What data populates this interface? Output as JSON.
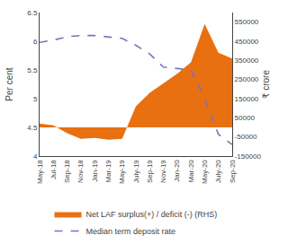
{
  "chart_data": {
    "type": "line",
    "categories": [
      "May-18",
      "Jul-18",
      "Sep-18",
      "Nov-18",
      "Jan-19",
      "Mar-19",
      "May-19",
      "July-19",
      "Sep-19",
      "Nov-19",
      "Jan-20",
      "Mar-20",
      "May-20",
      "July-20",
      "Sep-20"
    ],
    "series": [
      {
        "name": "Net LAF surplus(+) / deficit (-) (RHS)",
        "type": "area",
        "color": "#E87010",
        "axis": "y2",
        "values": [
          20000,
          10000,
          -30000,
          -60000,
          -55000,
          -65000,
          -60000,
          110000,
          180000,
          230000,
          280000,
          340000,
          540000,
          390000,
          360000
        ]
      },
      {
        "name": "Median term deposit rate",
        "type": "line",
        "color": "#8070B8",
        "line_style": "dashed",
        "values": [
          5.98,
          6.02,
          6.08,
          6.1,
          6.1,
          6.08,
          6.05,
          5.93,
          5.78,
          5.55,
          5.52,
          5.5,
          5.0,
          4.38,
          4.2
        ]
      }
    ],
    "ylabel": "Per cent",
    "y2label": "₹ crore",
    "ylim": [
      4.0,
      6.5
    ],
    "yticks": [
      4.0,
      4.5,
      5.0,
      5.5,
      6.0,
      6.5
    ],
    "y2lim": [
      -150000,
      600000
    ],
    "y2ticks": [
      -150000,
      -50000,
      50000,
      150000,
      250000,
      350000,
      450000,
      550000
    ],
    "grid": false,
    "legend": "bottom"
  }
}
